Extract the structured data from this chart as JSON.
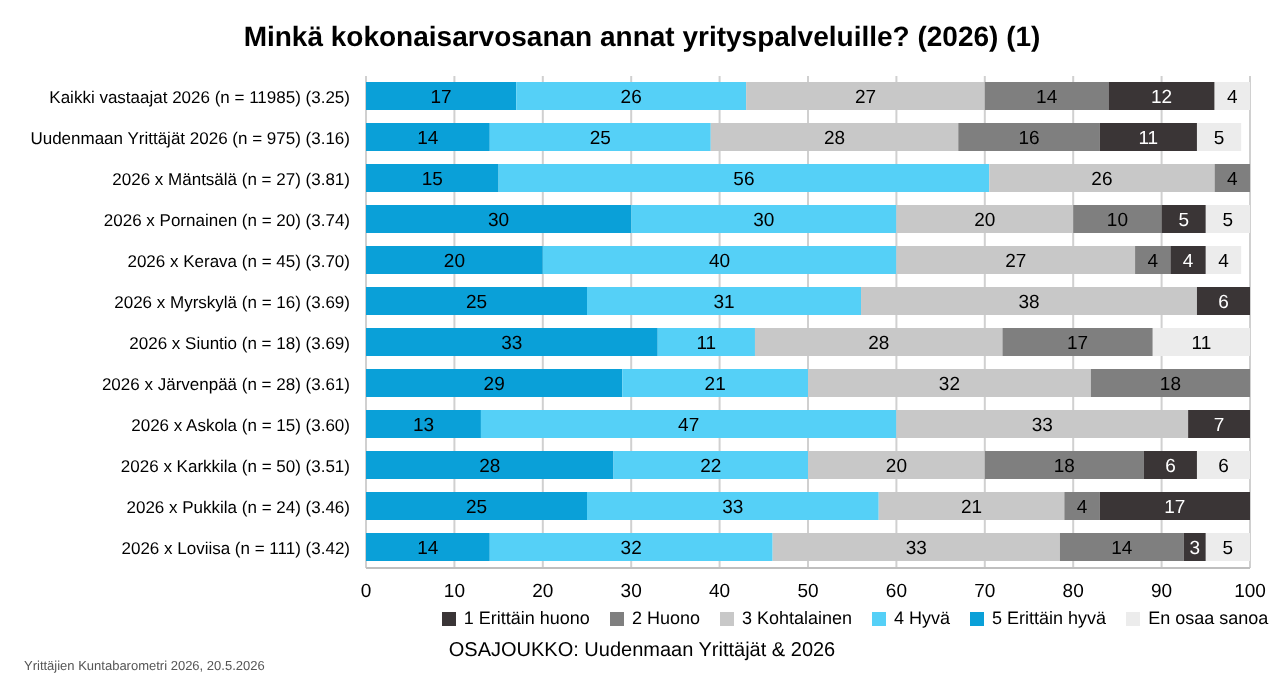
{
  "chart_data": {
    "type": "bar",
    "orientation": "horizontal",
    "stacked": true,
    "title": "Minkä kokonaisarvosanan annat yrityspalveluille? (2026) (1)",
    "categories": [
      "Kaikki vastaajat 2026 (n = 11985) (3.25)",
      "Uudenmaan Yrittäjät 2026 (n = 975) (3.16)",
      "2026 x Mäntsälä (n = 27) (3.81)",
      "2026 x Pornainen (n = 20) (3.74)",
      "2026 x Kerava (n = 45) (3.70)",
      "2026 x Myrskylä (n = 16) (3.69)",
      "2026 x Siuntio (n = 18) (3.69)",
      "2026 x Järvenpää (n = 28) (3.61)",
      "2026 x Askola (n = 15) (3.60)",
      "2026 x Karkkila (n = 50) (3.51)",
      "2026 x Pukkila (n = 24) (3.46)",
      "2026 x Loviisa (n = 111) (3.42)"
    ],
    "series": [
      {
        "name": "5 Erittäin hyvä",
        "color": "#0aa0d8",
        "values": [
          17,
          14,
          15,
          30,
          20,
          25,
          33,
          29,
          13,
          28,
          25,
          14
        ],
        "value_labels": [
          "17",
          "14",
          "15",
          "30",
          "20",
          "25",
          "33",
          "29",
          "13",
          "28",
          "25",
          "14"
        ]
      },
      {
        "name": "4 Hyvä",
        "color": "#55d0f7",
        "values": [
          26,
          25,
          55.5,
          30,
          40,
          31,
          11,
          21,
          47,
          22,
          33,
          32
        ],
        "value_labels": [
          "26",
          "25",
          "56",
          "30",
          "40",
          "31",
          "11",
          "21",
          "47",
          "22",
          "33",
          "32"
        ]
      },
      {
        "name": "3 Kohtalainen",
        "color": "#c8c8c8",
        "values": [
          27,
          28,
          25.5,
          20,
          27,
          38,
          28,
          32,
          33,
          20,
          21,
          32.5
        ],
        "value_labels": [
          "27",
          "28",
          "26",
          "20",
          "27",
          "38",
          "28",
          "32",
          "33",
          "20",
          "21",
          "33"
        ]
      },
      {
        "name": "2 Huono",
        "color": "#7f7f7f",
        "values": [
          14,
          16,
          4,
          10,
          4,
          0,
          17,
          18,
          0,
          18,
          4,
          14
        ],
        "value_labels": [
          "14",
          "16",
          "4",
          "10",
          "4",
          null,
          "17",
          "18",
          null,
          "18",
          "4",
          "14"
        ]
      },
      {
        "name": "1 Erittäin huono",
        "color": "#3a3536",
        "values": [
          12,
          11,
          0,
          5,
          4,
          6,
          0,
          0,
          7,
          6,
          17,
          2.5
        ],
        "value_labels": [
          "12",
          "11",
          null,
          "5",
          "4",
          "6",
          null,
          null,
          "7",
          "6",
          "17",
          "3"
        ]
      },
      {
        "name": "En osaa sanoa",
        "color": "#ececec",
        "values": [
          4,
          5,
          0,
          5,
          4,
          0,
          11,
          0,
          0,
          6,
          0,
          5
        ],
        "value_labels": [
          "4",
          "5",
          null,
          "5",
          "4",
          null,
          "11",
          null,
          null,
          "6",
          null,
          "5"
        ]
      }
    ],
    "xlim": [
      0,
      100
    ],
    "xticks": [
      0,
      10,
      20,
      30,
      40,
      50,
      60,
      70,
      80,
      90,
      100
    ],
    "grid": "x",
    "legend": "bottom",
    "annotations": [
      "OSAJOUKKO: Uudenmaan Yrittäjät & 2026",
      "Yrittäjien Kuntabarometri 2026, 20.5.2026"
    ]
  }
}
